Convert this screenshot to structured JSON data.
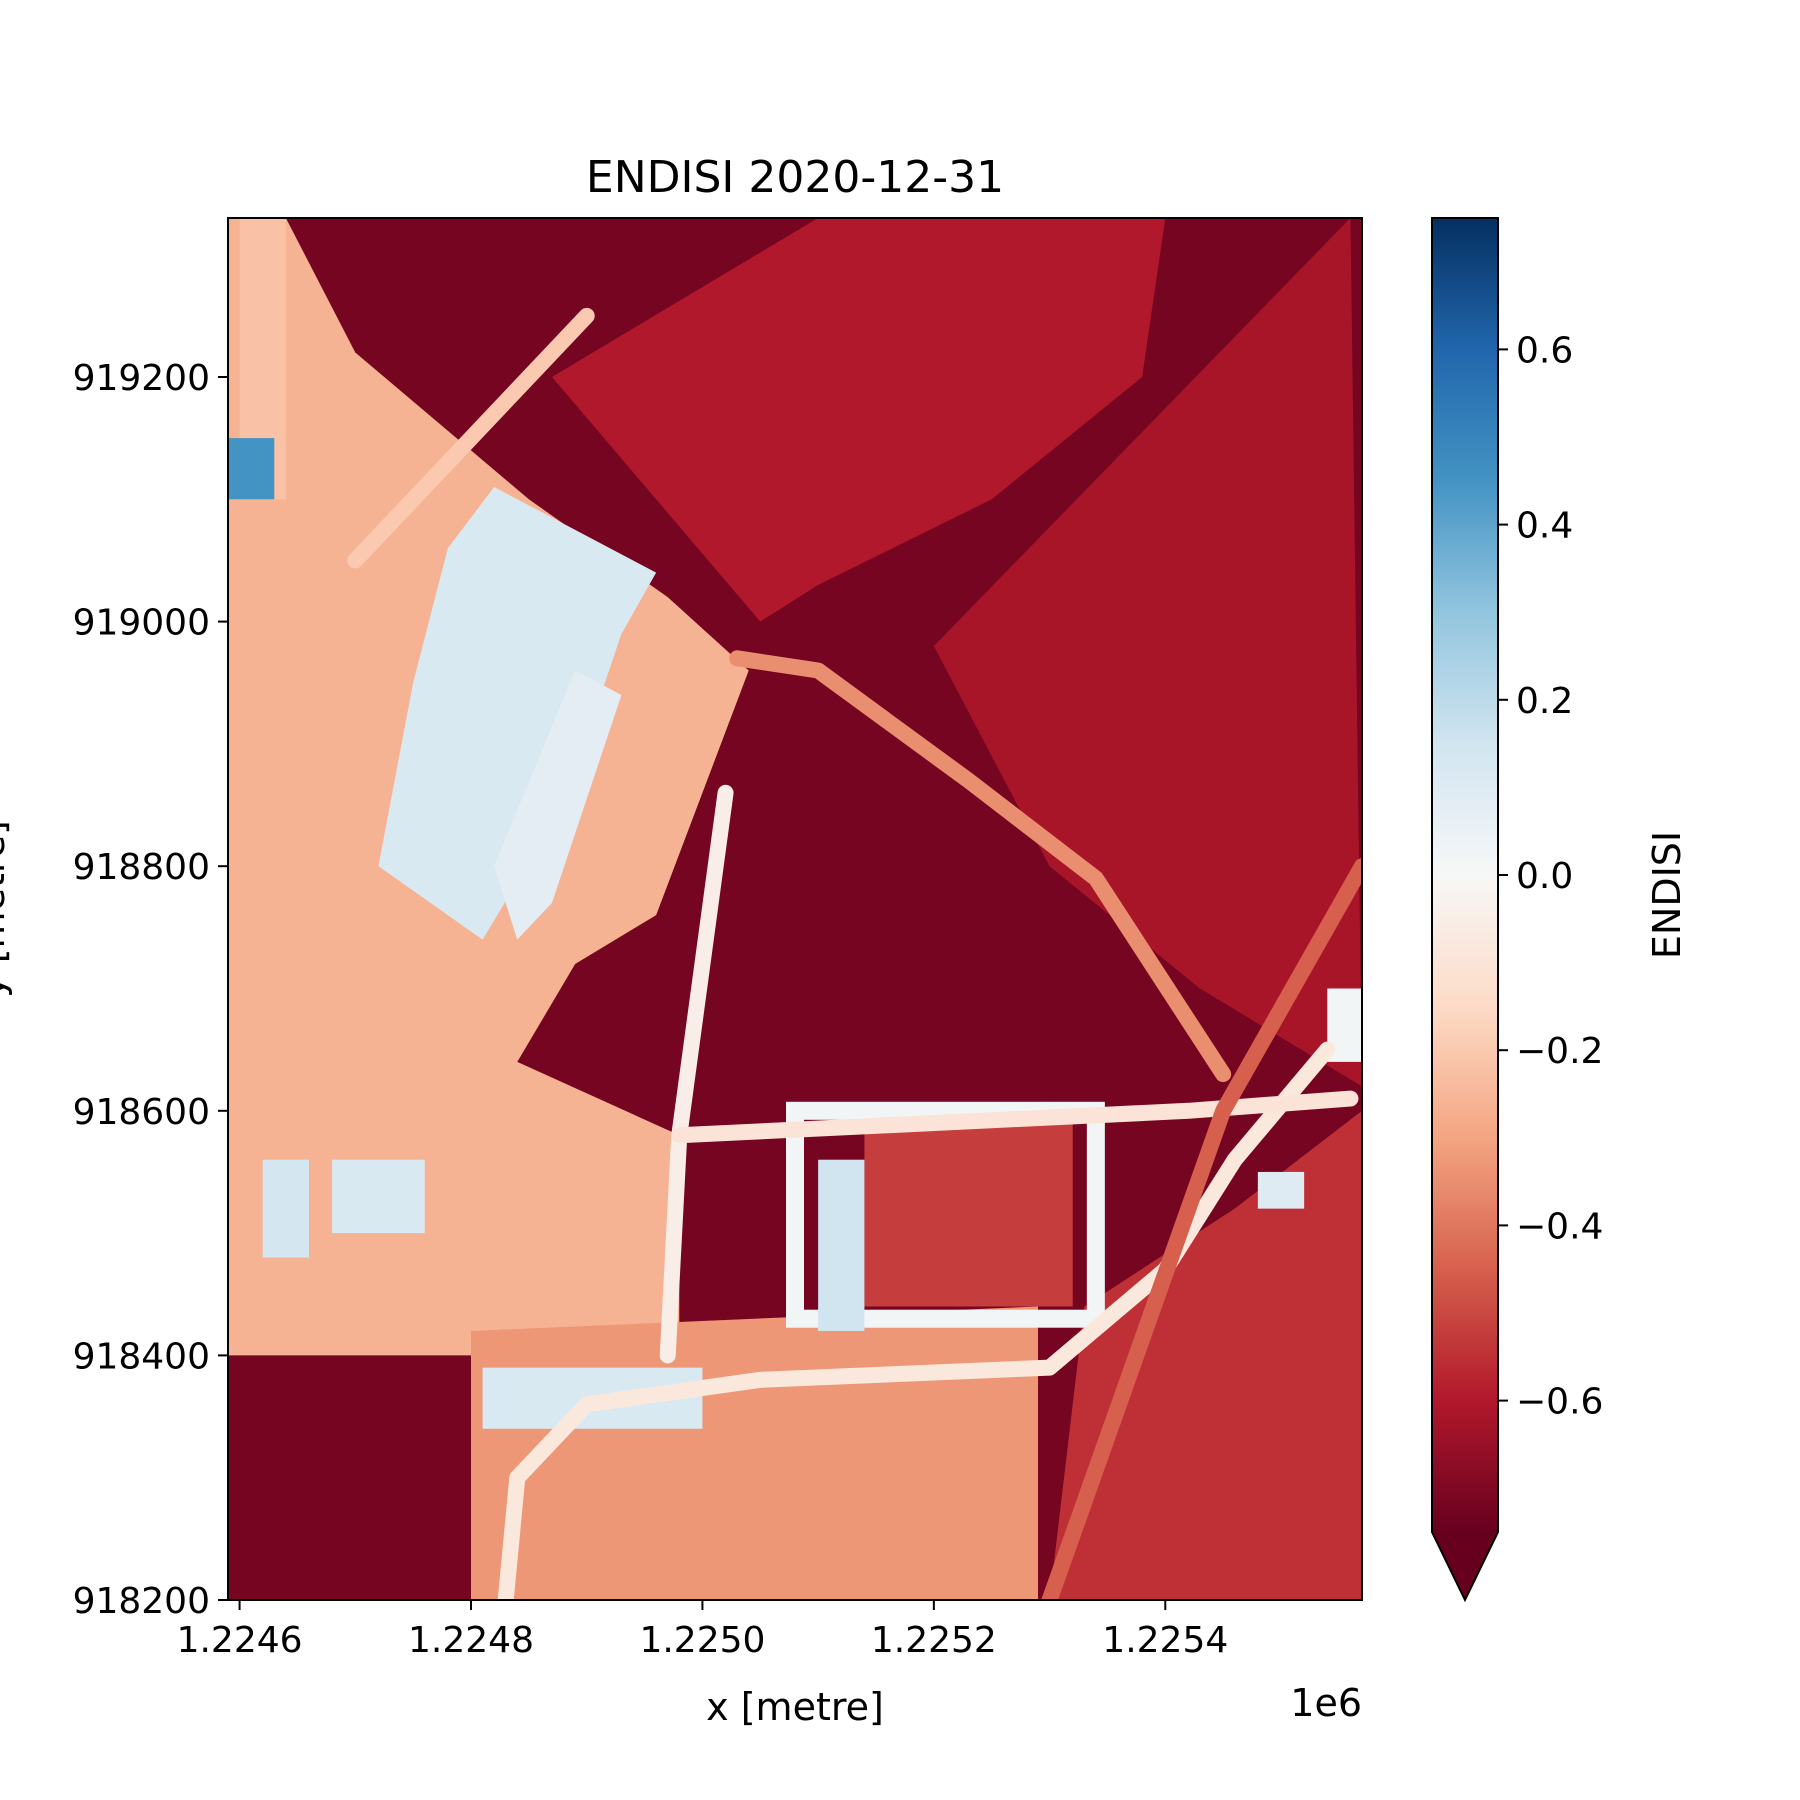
{
  "chart_data": {
    "type": "heatmap",
    "title": "ENDISI 2020-12-31",
    "xlabel": "x [metre]",
    "ylabel": "y [metre]",
    "x_offset_text": "1e6",
    "xlim": [
      1224590,
      1225570
    ],
    "ylim": [
      918200,
      919330
    ],
    "x_ticks": [
      1224600,
      1224800,
      1225000,
      1225200,
      1225400
    ],
    "x_tick_labels": [
      "1.2246",
      "1.2248",
      "1.2250",
      "1.2252",
      "1.2254"
    ],
    "y_ticks": [
      918200,
      918400,
      918600,
      918800,
      919000,
      919200
    ],
    "y_tick_labels": [
      "918200",
      "918400",
      "918600",
      "918800",
      "919000",
      "919200"
    ],
    "colorbar": {
      "label": "ENDISI",
      "colormap": "RdBu",
      "vmin": -0.75,
      "vmax": 0.75,
      "extend": "min",
      "ticks": [
        -0.6,
        -0.4,
        -0.2,
        0.0,
        0.2,
        0.4,
        0.6
      ],
      "tick_labels": [
        "−0.6",
        "−0.4",
        "−0.2",
        "0.0",
        "0.2",
        "0.4",
        "0.6"
      ]
    },
    "features": [
      {
        "name": "background-dark",
        "shape": "rect",
        "x": [
          1224590,
          1225570
        ],
        "y": [
          918200,
          919330
        ],
        "value": -0.72
      },
      {
        "name": "left-bare-land",
        "shape": "poly",
        "points": [
          [
            1224590,
            918400
          ],
          [
            1224590,
            919330
          ],
          [
            1224640,
            919330
          ],
          [
            1224700,
            919220
          ],
          [
            1224850,
            919100
          ],
          [
            1224970,
            919020
          ],
          [
            1225040,
            918960
          ],
          [
            1224960,
            918760
          ],
          [
            1224890,
            918720
          ],
          [
            1224840,
            918640
          ],
          [
            1224980,
            918580
          ],
          [
            1224980,
            918400
          ]
        ],
        "value": -0.26
      },
      {
        "name": "bottom-bare-land",
        "shape": "poly",
        "points": [
          [
            1224800,
            918200
          ],
          [
            1224800,
            918420
          ],
          [
            1225290,
            918440
          ],
          [
            1225290,
            918200
          ]
        ],
        "value": -0.33
      },
      {
        "name": "top-center-field",
        "shape": "poly",
        "points": [
          [
            1224870,
            919200
          ],
          [
            1225100,
            919330
          ],
          [
            1225400,
            919330
          ],
          [
            1225380,
            919200
          ],
          [
            1225250,
            919100
          ],
          [
            1225100,
            919030
          ],
          [
            1225050,
            919000
          ],
          [
            1224960,
            919100
          ]
        ],
        "value": -0.6
      },
      {
        "name": "right-field",
        "shape": "poly",
        "points": [
          [
            1225200,
            918980
          ],
          [
            1225560,
            919330
          ],
          [
            1225570,
            918620
          ],
          [
            1225430,
            918700
          ],
          [
            1225300,
            918800
          ]
        ],
        "value": -0.62
      },
      {
        "name": "rect-building-field",
        "shape": "rect",
        "x": [
          1225140,
          1225320
        ],
        "y": [
          918440,
          918590
        ],
        "value": -0.52
      },
      {
        "name": "bottom-right-mottled",
        "shape": "poly",
        "points": [
          [
            1225300,
            918200
          ],
          [
            1225330,
            918440
          ],
          [
            1225460,
            918520
          ],
          [
            1225570,
            918600
          ],
          [
            1225570,
            918200
          ]
        ],
        "value": -0.55
      },
      {
        "name": "upper-left-road",
        "shape": "rect",
        "x": [
          1224600,
          1224640
        ],
        "y": [
          919100,
          919330
        ],
        "value": -0.22
      },
      {
        "name": "blue-pool",
        "shape": "rect",
        "x": [
          1224590,
          1224630
        ],
        "y": [
          919100,
          919150
        ],
        "value": 0.45
      },
      {
        "name": "pale-blue-block-1",
        "shape": "poly",
        "points": [
          [
            1224780,
            919060
          ],
          [
            1224820,
            919110
          ],
          [
            1224960,
            919040
          ],
          [
            1224930,
            918990
          ],
          [
            1224880,
            918850
          ],
          [
            1224810,
            918740
          ],
          [
            1224720,
            918800
          ],
          [
            1224750,
            918950
          ]
        ],
        "value": 0.12
      },
      {
        "name": "pale-blue-block-2",
        "shape": "poly",
        "points": [
          [
            1224840,
            918740
          ],
          [
            1224870,
            918770
          ],
          [
            1224930,
            918940
          ],
          [
            1224890,
            918960
          ],
          [
            1224820,
            918800
          ]
        ],
        "value": 0.08
      },
      {
        "name": "small-blue-rect-1",
        "shape": "rect",
        "x": [
          1224620,
          1224660
        ],
        "y": [
          918480,
          918560
        ],
        "value": 0.14
      },
      {
        "name": "small-blue-rect-2",
        "shape": "rect",
        "x": [
          1224680,
          1224760
        ],
        "y": [
          918500,
          918560
        ],
        "value": 0.12
      },
      {
        "name": "building-white-frame",
        "shape": "frame",
        "x": [
          1225080,
          1225340
        ],
        "y": [
          918430,
          918600
        ],
        "value": 0.02
      },
      {
        "name": "building-blue-strip",
        "shape": "rect",
        "x": [
          1225100,
          1225140
        ],
        "y": [
          918420,
          918560
        ],
        "value": 0.15
      },
      {
        "name": "bottom-blue-strip",
        "shape": "rect",
        "x": [
          1224810,
          1225000
        ],
        "y": [
          918340,
          918390
        ],
        "value": 0.12
      },
      {
        "name": "right-edge-white",
        "shape": "rect",
        "x": [
          1225540,
          1225570
        ],
        "y": [
          918640,
          918700
        ],
        "value": 0.02
      },
      {
        "name": "right-small-blue",
        "shape": "rect",
        "x": [
          1225480,
          1225520
        ],
        "y": [
          918520,
          918550
        ],
        "value": 0.1
      }
    ],
    "lines": [
      {
        "name": "diagonal-road",
        "points": [
          [
            1225030,
            918970
          ],
          [
            1225100,
            918960
          ],
          [
            1225230,
            918870
          ],
          [
            1225340,
            918790
          ],
          [
            1225450,
            918630
          ]
        ],
        "value": -0.35
      },
      {
        "name": "vertical-road",
        "points": [
          [
            1225020,
            918860
          ],
          [
            1224980,
            918580
          ],
          [
            1224970,
            918400
          ]
        ],
        "value": -0.05
      },
      {
        "name": "curved-road",
        "points": [
          [
            1224830,
            918200
          ],
          [
            1224840,
            918300
          ],
          [
            1224900,
            918360
          ],
          [
            1225050,
            918380
          ],
          [
            1225300,
            918390
          ],
          [
            1225400,
            918470
          ],
          [
            1225460,
            918560
          ],
          [
            1225540,
            918650
          ]
        ],
        "value": -0.08
      },
      {
        "name": "horizontal-road",
        "points": [
          [
            1224980,
            918580
          ],
          [
            1225420,
            918600
          ],
          [
            1225560,
            918610
          ]
        ],
        "value": -0.1
      },
      {
        "name": "diagonal-road-2",
        "points": [
          [
            1224700,
            919050
          ],
          [
            1224850,
            919200
          ],
          [
            1224900,
            919250
          ]
        ],
        "value": -0.2
      },
      {
        "name": "right-track",
        "points": [
          [
            1225300,
            918200
          ],
          [
            1225450,
            918600
          ],
          [
            1225570,
            918800
          ]
        ],
        "value": -0.45
      }
    ]
  }
}
